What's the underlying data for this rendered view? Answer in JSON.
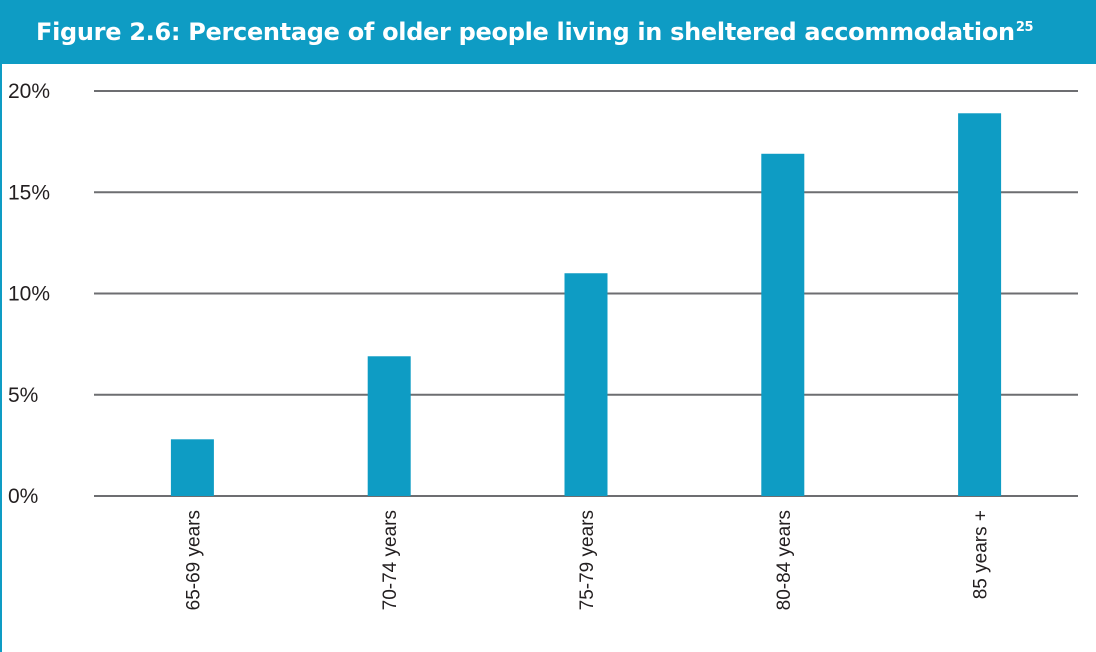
{
  "header": {
    "title": "Figure 2.6: Percentage of older people living in sheltered accommodation",
    "superscript": "25",
    "color": "#0e9cc4"
  },
  "chart_data": {
    "type": "bar",
    "categories": [
      "65-69 years",
      "70-74 years",
      "75-79 years",
      "80-84 years",
      "85 years +"
    ],
    "values": [
      2.8,
      6.9,
      11,
      16.9,
      18.9
    ],
    "y_ticks": [
      "0%",
      "5%",
      "10%",
      "15%",
      "20%"
    ],
    "y_tick_values": [
      0,
      5,
      10,
      15,
      20
    ],
    "ylim": [
      0,
      20
    ],
    "grid": true,
    "bar_color": "#0e9cc4",
    "grid_color": "#6d6e71"
  }
}
